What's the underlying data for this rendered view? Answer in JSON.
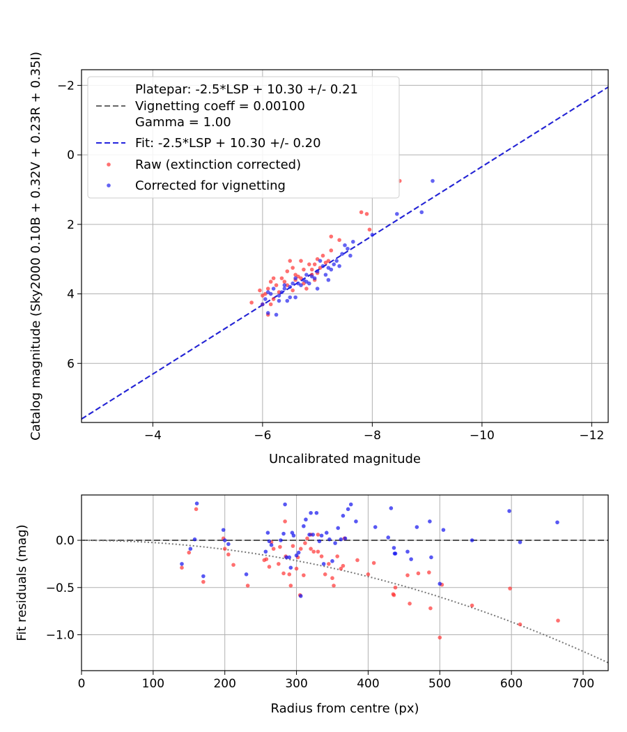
{
  "chart_data": [
    {
      "type": "scatter",
      "xlabel": "Uncalibrated magnitude",
      "ylabel": "Catalog magnitude (Sky2000 0.10B + 0.32V + 0.23R + 0.35I)",
      "xlim": [
        -2.7,
        -12.3
      ],
      "ylim": [
        7.7,
        -2.45
      ],
      "x_inverted": true,
      "y_inverted": true,
      "grid": true,
      "legend_position": "top-left",
      "xticks": [
        -4,
        -6,
        -8,
        -10,
        -12
      ],
      "yticks": [
        -2,
        0,
        2,
        4,
        6
      ],
      "xtick_labels": [
        "−4",
        "−6",
        "−8",
        "−10",
        "−12"
      ],
      "ytick_labels": [
        "−2",
        "0",
        "2",
        "4",
        "6"
      ],
      "legend": {
        "platepar_line1": "Platepar: -2.5*LSP + 10.30 +/- 0.21",
        "platepar_line2": "Vignetting coeff = 0.00100",
        "platepar_line3": "Gamma = 1.00",
        "fit": "Fit: -2.5*LSP + 10.30 +/- 0.20",
        "raw": "Raw (extinction corrected)",
        "corrected": "Corrected for vignetting"
      },
      "lines": [
        {
          "name": "Platepar",
          "style": "dashed",
          "color": "#666666",
          "x": [
            -2.7,
            -12.3
          ],
          "y": [
            7.6,
            -1.95
          ]
        },
        {
          "name": "Fit",
          "style": "dashed",
          "color": "#2222dd",
          "x": [
            -2.7,
            -12.3
          ],
          "y": [
            7.6,
            -1.95
          ]
        }
      ],
      "series": [
        {
          "name": "Raw (extinction corrected)",
          "color": "#ff3333",
          "points": [
            [
              -8.5,
              0.75
            ],
            [
              -7.8,
              1.65
            ],
            [
              -7.9,
              1.7
            ],
            [
              -7.95,
              2.15
            ],
            [
              -7.25,
              2.35
            ],
            [
              -7.4,
              2.45
            ],
            [
              -7.25,
              2.75
            ],
            [
              -7.1,
              2.9
            ],
            [
              -7.0,
              3.0
            ],
            [
              -7.15,
              3.1
            ],
            [
              -6.95,
              3.15
            ],
            [
              -6.9,
              3.3
            ],
            [
              -6.75,
              3.3
            ],
            [
              -6.6,
              3.45
            ],
            [
              -6.5,
              3.05
            ],
            [
              -6.45,
              3.35
            ],
            [
              -6.35,
              3.55
            ],
            [
              -6.2,
              3.55
            ],
            [
              -6.15,
              3.65
            ],
            [
              -6.1,
              3.85
            ],
            [
              -5.95,
              3.9
            ],
            [
              -6.05,
              4.0
            ],
            [
              -6.15,
              4.3
            ],
            [
              -5.8,
              4.25
            ],
            [
              -6.0,
              4.05
            ],
            [
              -6.1,
              4.6
            ],
            [
              -6.7,
              3.55
            ],
            [
              -6.55,
              3.9
            ],
            [
              -6.65,
              3.5
            ],
            [
              -6.8,
              3.85
            ],
            [
              -7.0,
              3.4
            ],
            [
              -6.85,
              3.15
            ],
            [
              -6.3,
              3.95
            ],
            [
              -6.45,
              3.75
            ],
            [
              -6.6,
              3.6
            ],
            [
              -6.75,
              3.7
            ],
            [
              -6.9,
              3.45
            ],
            [
              -7.05,
              3.25
            ],
            [
              -6.25,
              3.75
            ],
            [
              -6.55,
              3.25
            ],
            [
              -6.4,
              3.65
            ],
            [
              -6.2,
              4.15
            ],
            [
              -6.7,
              3.05
            ],
            [
              -7.2,
              3.05
            ],
            [
              -6.95,
              3.6
            ],
            [
              -6.0,
              4.3
            ]
          ]
        },
        {
          "name": "Corrected for vignetting",
          "color": "#2222ee",
          "points": [
            [
              -9.1,
              0.75
            ],
            [
              -8.45,
              1.7
            ],
            [
              -8.9,
              1.65
            ],
            [
              -8.0,
              2.3
            ],
            [
              -7.65,
              2.5
            ],
            [
              -7.55,
              2.7
            ],
            [
              -7.45,
              2.85
            ],
            [
              -7.35,
              3.05
            ],
            [
              -7.3,
              3.15
            ],
            [
              -7.2,
              3.25
            ],
            [
              -7.1,
              3.2
            ],
            [
              -7.0,
              3.35
            ],
            [
              -6.9,
              3.5
            ],
            [
              -6.8,
              3.45
            ],
            [
              -6.75,
              3.6
            ],
            [
              -6.65,
              3.7
            ],
            [
              -6.55,
              3.7
            ],
            [
              -6.5,
              3.8
            ],
            [
              -6.4,
              3.85
            ],
            [
              -6.35,
              3.95
            ],
            [
              -6.2,
              3.85
            ],
            [
              -6.15,
              4.0
            ],
            [
              -6.05,
              4.15
            ],
            [
              -6.0,
              4.3
            ],
            [
              -6.3,
              4.2
            ],
            [
              -6.45,
              4.2
            ],
            [
              -6.6,
              4.1
            ],
            [
              -7.0,
              3.85
            ],
            [
              -7.2,
              3.6
            ],
            [
              -7.4,
              3.2
            ],
            [
              -7.6,
              2.9
            ],
            [
              -6.25,
              4.6
            ],
            [
              -6.85,
              3.7
            ],
            [
              -6.95,
              3.55
            ],
            [
              -7.15,
              3.45
            ],
            [
              -6.7,
              3.75
            ],
            [
              -6.1,
              3.95
            ],
            [
              -6.5,
              4.1
            ],
            [
              -7.05,
              3.05
            ],
            [
              -7.5,
              2.6
            ],
            [
              -6.4,
              3.75
            ],
            [
              -6.6,
              3.55
            ],
            [
              -6.3,
              4.05
            ],
            [
              -7.25,
              3.3
            ],
            [
              -6.8,
              3.65
            ],
            [
              -6.1,
              4.55
            ]
          ]
        }
      ]
    },
    {
      "type": "scatter",
      "xlabel": "Radius from centre (px)",
      "ylabel": "Fit residuals (mag)",
      "xlim": [
        0,
        735
      ],
      "ylim": [
        -1.38,
        0.48
      ],
      "grid": true,
      "xticks": [
        0,
        100,
        200,
        300,
        400,
        500,
        600,
        700
      ],
      "yticks": [
        0.0,
        -0.5,
        -1.0
      ],
      "xtick_labels": [
        "0",
        "100",
        "200",
        "300",
        "400",
        "500",
        "600",
        "700"
      ],
      "ytick_labels": [
        "0.0",
        "−0.5",
        "−1.0"
      ],
      "lines": [
        {
          "name": "zero",
          "style": "dashed",
          "color": "#555555",
          "x": [
            0,
            735
          ],
          "y": [
            0,
            0
          ]
        },
        {
          "name": "vignetting model",
          "style": "dotted",
          "color": "#777777",
          "type": "curve"
        }
      ],
      "series": [
        {
          "name": "Raw (extinction corrected)",
          "color": "#ff3333",
          "points": [
            [
              140,
              -0.29
            ],
            [
              150,
              -0.13
            ],
            [
              160,
              0.33
            ],
            [
              170,
              -0.44
            ],
            [
              198,
              0.02
            ],
            [
              200,
              -0.09
            ],
            [
              205,
              -0.15
            ],
            [
              212,
              -0.26
            ],
            [
              232,
              -0.48
            ],
            [
              255,
              -0.21
            ],
            [
              258,
              -0.2
            ],
            [
              262,
              -0.28
            ],
            [
              265,
              -0.02
            ],
            [
              268,
              -0.09
            ],
            [
              275,
              -0.25
            ],
            [
              282,
              -0.35
            ],
            [
              284,
              0.2
            ],
            [
              285,
              -0.17
            ],
            [
              290,
              -0.36
            ],
            [
              292,
              -0.48
            ],
            [
              295,
              -0.06
            ],
            [
              300,
              -0.3
            ],
            [
              302,
              -0.18
            ],
            [
              305,
              -0.58
            ],
            [
              306,
              -0.09
            ],
            [
              310,
              -0.37
            ],
            [
              312,
              -0.03
            ],
            [
              315,
              0.02
            ],
            [
              320,
              0.06
            ],
            [
              324,
              -0.12
            ],
            [
              330,
              0.06
            ],
            [
              335,
              -0.17
            ],
            [
              340,
              -0.36
            ],
            [
              345,
              -0.25
            ],
            [
              350,
              -0.4
            ],
            [
              352,
              -0.48
            ],
            [
              357,
              -0.17
            ],
            [
              362,
              -0.3
            ],
            [
              365,
              -0.27
            ],
            [
              367,
              0.02
            ],
            [
              400,
              -0.36
            ],
            [
              408,
              -0.24
            ],
            [
              435,
              -0.57
            ],
            [
              436,
              -0.58
            ],
            [
              438,
              -0.5
            ],
            [
              455,
              -0.37
            ],
            [
              458,
              -0.67
            ],
            [
              470,
              -0.35
            ],
            [
              485,
              -0.34
            ],
            [
              487,
              -0.72
            ],
            [
              500,
              -1.03
            ],
            [
              503,
              -0.47
            ],
            [
              545,
              -0.69
            ],
            [
              598,
              -0.51
            ],
            [
              612,
              -0.89
            ],
            [
              665,
              -0.85
            ],
            [
              330,
              -0.12
            ],
            [
              320,
              -0.09
            ],
            [
              277,
              -0.07
            ],
            [
              385,
              -0.21
            ]
          ]
        },
        {
          "name": "Corrected for vignetting",
          "color": "#1111ee",
          "points": [
            [
              140,
              -0.25
            ],
            [
              152,
              -0.09
            ],
            [
              158,
              0.01
            ],
            [
              161,
              0.39
            ],
            [
              170,
              -0.38
            ],
            [
              198,
              0.11
            ],
            [
              200,
              0.0
            ],
            [
              205,
              -0.04
            ],
            [
              230,
              -0.36
            ],
            [
              257,
              -0.12
            ],
            [
              260,
              0.08
            ],
            [
              262,
              -0.01
            ],
            [
              265,
              -0.05
            ],
            [
              278,
              0.0
            ],
            [
              282,
              0.07
            ],
            [
              284,
              0.38
            ],
            [
              286,
              -0.18
            ],
            [
              290,
              -0.18
            ],
            [
              292,
              -0.29
            ],
            [
              294,
              0.08
            ],
            [
              296,
              0.05
            ],
            [
              300,
              -0.16
            ],
            [
              303,
              -0.13
            ],
            [
              306,
              -0.59
            ],
            [
              310,
              0.15
            ],
            [
              313,
              0.22
            ],
            [
              318,
              0.06
            ],
            [
              320,
              0.29
            ],
            [
              323,
              0.06
            ],
            [
              328,
              0.29
            ],
            [
              332,
              -0.01
            ],
            [
              335,
              0.05
            ],
            [
              338,
              -0.25
            ],
            [
              342,
              0.08
            ],
            [
              346,
              0.01
            ],
            [
              350,
              -0.22
            ],
            [
              354,
              -0.03
            ],
            [
              358,
              0.13
            ],
            [
              362,
              0.01
            ],
            [
              365,
              0.26
            ],
            [
              368,
              0.02
            ],
            [
              372,
              0.33
            ],
            [
              376,
              0.38
            ],
            [
              383,
              0.2
            ],
            [
              410,
              0.14
            ],
            [
              428,
              0.03
            ],
            [
              432,
              0.34
            ],
            [
              436,
              -0.08
            ],
            [
              437,
              -0.14
            ],
            [
              438,
              -0.14
            ],
            [
              455,
              -0.12
            ],
            [
              460,
              -0.2
            ],
            [
              468,
              0.14
            ],
            [
              486,
              0.2
            ],
            [
              488,
              -0.18
            ],
            [
              500,
              -0.46
            ],
            [
              505,
              0.11
            ],
            [
              545,
              0.0
            ],
            [
              597,
              0.31
            ],
            [
              612,
              -0.02
            ],
            [
              664,
              0.19
            ]
          ]
        }
      ]
    }
  ]
}
